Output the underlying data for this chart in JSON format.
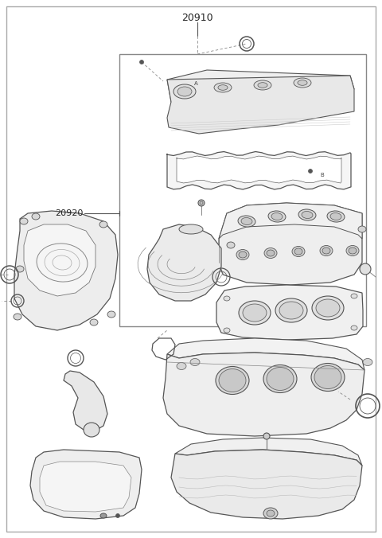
{
  "title": "20910",
  "label2": "20920",
  "bg_color": "#ffffff",
  "lc": "#555555",
  "fc_light": "#f8f8f8",
  "fc_mid": "#f0f0f0",
  "dpi": 100,
  "fig_width": 4.8,
  "fig_height": 6.76
}
